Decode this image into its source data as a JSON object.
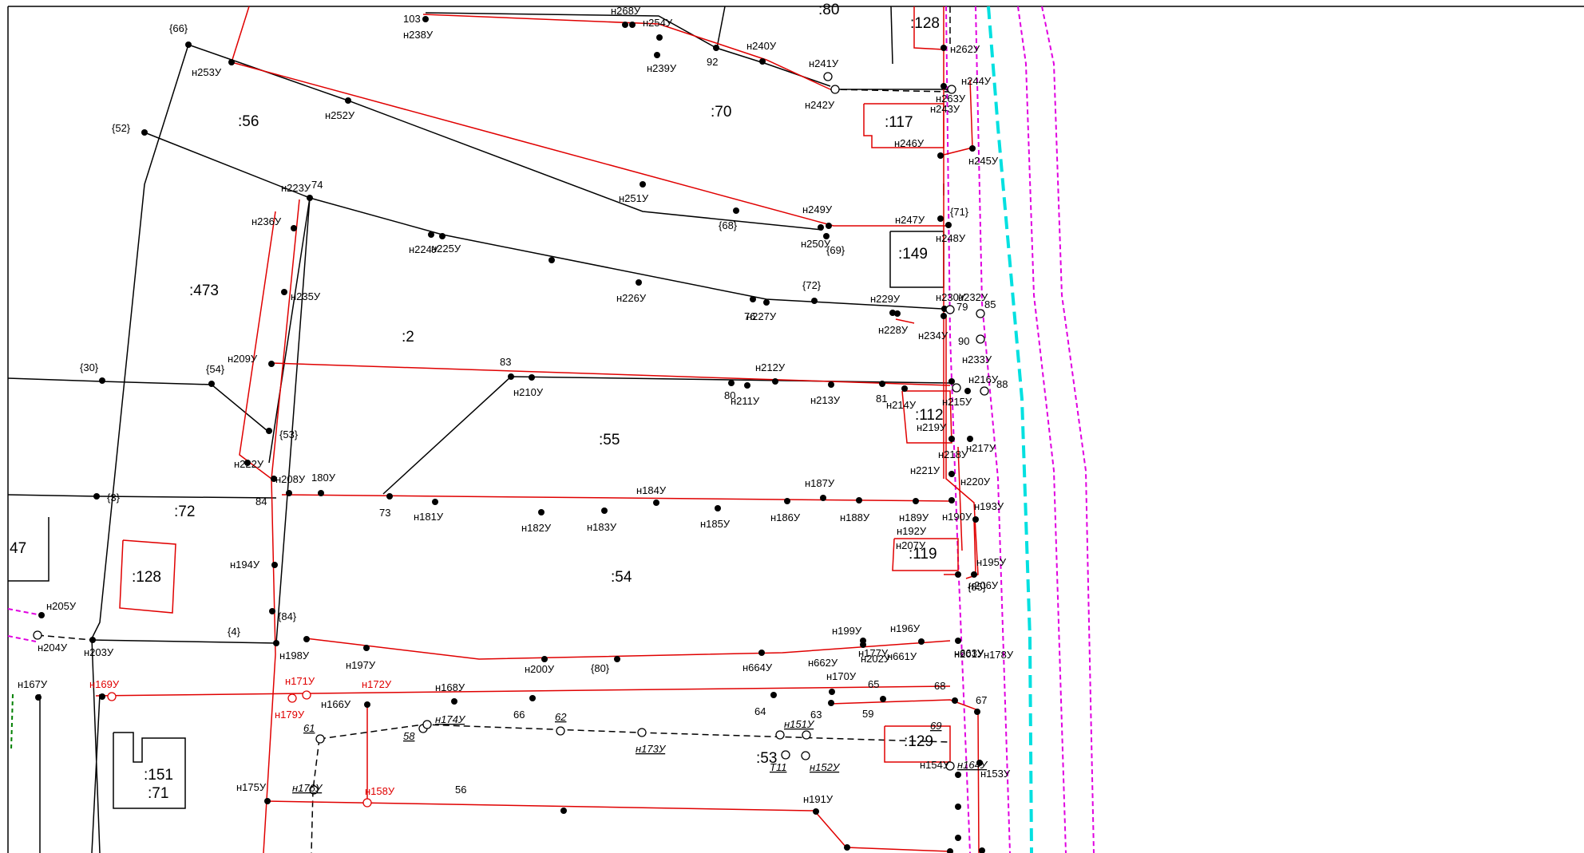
{
  "parcels": [
    {
      "id": "p80",
      "text": ":80"
    },
    {
      "id": "p128a",
      "text": ":128"
    },
    {
      "id": "p56",
      "text": ":56"
    },
    {
      "id": "p70",
      "text": ":70"
    },
    {
      "id": "p117",
      "text": ":117"
    },
    {
      "id": "p149",
      "text": ":149"
    },
    {
      "id": "p473",
      "text": ":473"
    },
    {
      "id": "p2",
      "text": ":2"
    },
    {
      "id": "p55",
      "text": ":55"
    },
    {
      "id": "p112",
      "text": ":112"
    },
    {
      "id": "p72",
      "text": ":72"
    },
    {
      "id": "p47",
      "text": "47"
    },
    {
      "id": "p128b",
      "text": ":128"
    },
    {
      "id": "p54",
      "text": ":54"
    },
    {
      "id": "p119",
      "text": ":119"
    },
    {
      "id": "p129",
      "text": ":129"
    },
    {
      "id": "p53",
      "text": ":53"
    },
    {
      "id": "p151",
      "text": ":151"
    },
    {
      "id": "p71",
      "text": ":71"
    }
  ],
  "points": [
    {
      "id": "a",
      "text": "103"
    },
    {
      "id": "b",
      "text": "н238У"
    },
    {
      "id": "c",
      "text": "н268У"
    },
    {
      "id": "d",
      "text": "н254У"
    },
    {
      "id": "e",
      "text": "{66}"
    },
    {
      "id": "f",
      "text": "н253У"
    },
    {
      "id": "g",
      "text": "н240У"
    },
    {
      "id": "h",
      "text": "92"
    },
    {
      "id": "i",
      "text": "н239У"
    },
    {
      "id": "j",
      "text": "н262У"
    },
    {
      "id": "k",
      "text": "н241У"
    },
    {
      "id": "l",
      "text": "н242У"
    },
    {
      "id": "m",
      "text": "н244У"
    },
    {
      "id": "n",
      "text": "н263У"
    },
    {
      "id": "o",
      "text": "н243У"
    },
    {
      "id": "p",
      "text": "{52}"
    },
    {
      "id": "q",
      "text": "н252У"
    },
    {
      "id": "r",
      "text": "н246У"
    },
    {
      "id": "s",
      "text": "н245У"
    },
    {
      "id": "t",
      "text": "н223У"
    },
    {
      "id": "u",
      "text": "74"
    },
    {
      "id": "v",
      "text": "н251У"
    },
    {
      "id": "w",
      "text": "н236У"
    },
    {
      "id": "x",
      "text": "{68}"
    },
    {
      "id": "y",
      "text": "н249У"
    },
    {
      "id": "z",
      "text": "н247У"
    },
    {
      "id": "aa",
      "text": "{71}"
    },
    {
      "id": "ab",
      "text": "н250У"
    },
    {
      "id": "ac",
      "text": "{69}"
    },
    {
      "id": "ad",
      "text": "н248У"
    },
    {
      "id": "ae",
      "text": "н224У"
    },
    {
      "id": "af",
      "text": "н225У"
    },
    {
      "id": "ag",
      "text": "н226У"
    },
    {
      "id": "ah",
      "text": "н235У"
    },
    {
      "id": "ai",
      "text": "{72}"
    },
    {
      "id": "aj",
      "text": "н229У"
    },
    {
      "id": "ak",
      "text": "н230У"
    },
    {
      "id": "al",
      "text": "н232У"
    },
    {
      "id": "am",
      "text": "85"
    },
    {
      "id": "an",
      "text": "79"
    },
    {
      "id": "ao",
      "text": "76"
    },
    {
      "id": "ap",
      "text": "н227У"
    },
    {
      "id": "aq",
      "text": "н228У"
    },
    {
      "id": "ar",
      "text": "н234У"
    },
    {
      "id": "as",
      "text": "90"
    },
    {
      "id": "at",
      "text": "н233У"
    },
    {
      "id": "au",
      "text": "{30}"
    },
    {
      "id": "av",
      "text": "{54}"
    },
    {
      "id": "aw",
      "text": "н209У"
    },
    {
      "id": "ax",
      "text": "83"
    },
    {
      "id": "ay",
      "text": "н210У"
    },
    {
      "id": "az",
      "text": "н212У"
    },
    {
      "id": "ba",
      "text": "80"
    },
    {
      "id": "bb",
      "text": "н211У"
    },
    {
      "id": "bc",
      "text": "н213У"
    },
    {
      "id": "bd",
      "text": "81"
    },
    {
      "id": "be",
      "text": "н214У"
    },
    {
      "id": "bf",
      "text": "н215У"
    },
    {
      "id": "bg",
      "text": "н216У"
    },
    {
      "id": "bh",
      "text": "88"
    },
    {
      "id": "bi",
      "text": "н219У"
    },
    {
      "id": "bj",
      "text": "{53}"
    },
    {
      "id": "bk",
      "text": "н218У"
    },
    {
      "id": "bl",
      "text": "н217У"
    },
    {
      "id": "bm",
      "text": "н222У"
    },
    {
      "id": "bn",
      "text": "н221У"
    },
    {
      "id": "bo",
      "text": "н220У"
    },
    {
      "id": "bp",
      "text": "н208У"
    },
    {
      "id": "bq",
      "text": "180У"
    },
    {
      "id": "br",
      "text": "{3}"
    },
    {
      "id": "bs",
      "text": "н184У"
    },
    {
      "id": "bt",
      "text": "н187У"
    },
    {
      "id": "bu",
      "text": "84"
    },
    {
      "id": "bv",
      "text": "73"
    },
    {
      "id": "bw",
      "text": "н181У"
    },
    {
      "id": "bx",
      "text": "н182У"
    },
    {
      "id": "by",
      "text": "н183У"
    },
    {
      "id": "bz",
      "text": "н185У"
    },
    {
      "id": "ca",
      "text": "н186У"
    },
    {
      "id": "cb",
      "text": "н188У"
    },
    {
      "id": "cc",
      "text": "н189У"
    },
    {
      "id": "cd",
      "text": "н190У"
    },
    {
      "id": "ce",
      "text": "н193У"
    },
    {
      "id": "cf",
      "text": "н192У"
    },
    {
      "id": "cg",
      "text": "н207У"
    },
    {
      "id": "ch",
      "text": "н195У"
    },
    {
      "id": "ci",
      "text": "н194У"
    },
    {
      "id": "cj",
      "text": "{85}"
    },
    {
      "id": "ck",
      "text": "н206У"
    },
    {
      "id": "cl",
      "text": "н205У"
    },
    {
      "id": "cm",
      "text": "{84}"
    },
    {
      "id": "cn",
      "text": "{4}"
    },
    {
      "id": "co",
      "text": "н204У"
    },
    {
      "id": "cp",
      "text": "н203У"
    },
    {
      "id": "cq",
      "text": "н198У"
    },
    {
      "id": "cr",
      "text": "н197У"
    },
    {
      "id": "cs",
      "text": "н199У"
    },
    {
      "id": "ct",
      "text": "н196У"
    },
    {
      "id": "cu",
      "text": "н202У"
    },
    {
      "id": "cv",
      "text": "н201У"
    },
    {
      "id": "cw",
      "text": "н200У"
    },
    {
      "id": "cx",
      "text": "{80}"
    },
    {
      "id": "cy",
      "text": "н664У"
    },
    {
      "id": "cz",
      "text": "н662У"
    },
    {
      "id": "da",
      "text": "н661У"
    },
    {
      "id": "db",
      "text": "н663У"
    },
    {
      "id": "dc",
      "text": "н177У"
    },
    {
      "id": "dd",
      "text": "н178У"
    },
    {
      "id": "de",
      "text": "н167У"
    },
    {
      "id": "df",
      "text": "н169У"
    },
    {
      "id": "dg",
      "text": "н171У"
    },
    {
      "id": "dh",
      "text": "н172У"
    },
    {
      "id": "di",
      "text": "н179У"
    },
    {
      "id": "dj",
      "text": "н166У"
    },
    {
      "id": "dk",
      "text": "н168У"
    },
    {
      "id": "dl",
      "text": "н170У"
    },
    {
      "id": "dm",
      "text": "65"
    },
    {
      "id": "dn",
      "text": "68"
    },
    {
      "id": "do",
      "text": "67"
    },
    {
      "id": "dp",
      "text": "66"
    },
    {
      "id": "dq",
      "text": "64"
    },
    {
      "id": "dr",
      "text": "63"
    },
    {
      "id": "ds",
      "text": "59"
    },
    {
      "id": "dt",
      "text": "62"
    },
    {
      "id": "du",
      "text": "61"
    },
    {
      "id": "dv",
      "text": "н174У"
    },
    {
      "id": "dw",
      "text": "58"
    },
    {
      "id": "dx",
      "text": "н173У"
    },
    {
      "id": "dy",
      "text": "н151У"
    },
    {
      "id": "dz",
      "text": "69"
    },
    {
      "id": "ea",
      "text": "Т11"
    },
    {
      "id": "eb",
      "text": "н152У"
    },
    {
      "id": "ec",
      "text": "н154У"
    },
    {
      "id": "ed",
      "text": "н164У"
    },
    {
      "id": "ee",
      "text": "н153У"
    },
    {
      "id": "ef",
      "text": "н175У"
    },
    {
      "id": "eg",
      "text": "н176У"
    },
    {
      "id": "eh",
      "text": "н158У"
    },
    {
      "id": "ei",
      "text": "56"
    },
    {
      "id": "ej",
      "text": "н191У"
    }
  ],
  "colors": {
    "boundary_black": "#000000",
    "boundary_red": "#e00000",
    "dashed_magenta": "#e000e0",
    "dashed_cyan": "#00e0e0",
    "dashed_green": "#008000"
  }
}
